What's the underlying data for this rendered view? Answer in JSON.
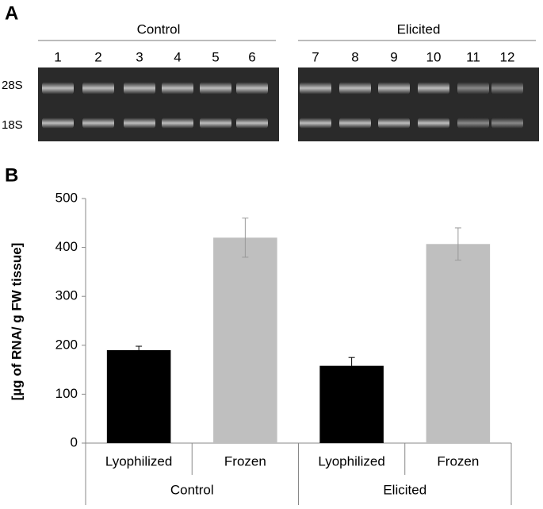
{
  "panel_a": {
    "label": "A",
    "groups": [
      {
        "name": "Control",
        "lanes": [
          "1",
          "2",
          "3",
          "4",
          "5",
          "6"
        ]
      },
      {
        "name": "Elicited",
        "lanes": [
          "7",
          "8",
          "9",
          "10",
          "11",
          "12"
        ]
      }
    ],
    "band_labels": [
      "28S",
      "18S"
    ]
  },
  "chart_data": {
    "type": "bar",
    "panel_label": "B",
    "ylabel": "[µg of RNA/ g FW tissue]",
    "ylim": [
      0,
      500
    ],
    "yticks": [
      0,
      100,
      200,
      300,
      400,
      500
    ],
    "colors": [
      "#000000",
      "#bfbfbf"
    ],
    "groups": [
      {
        "name": "Control",
        "categories": [
          "Lyophilized",
          "Frozen"
        ],
        "values": [
          190,
          420
        ],
        "errors": [
          8,
          40
        ]
      },
      {
        "name": "Elicited",
        "categories": [
          "Lyophilized",
          "Frozen"
        ],
        "values": [
          158,
          407
        ],
        "errors": [
          17,
          33
        ]
      }
    ]
  }
}
